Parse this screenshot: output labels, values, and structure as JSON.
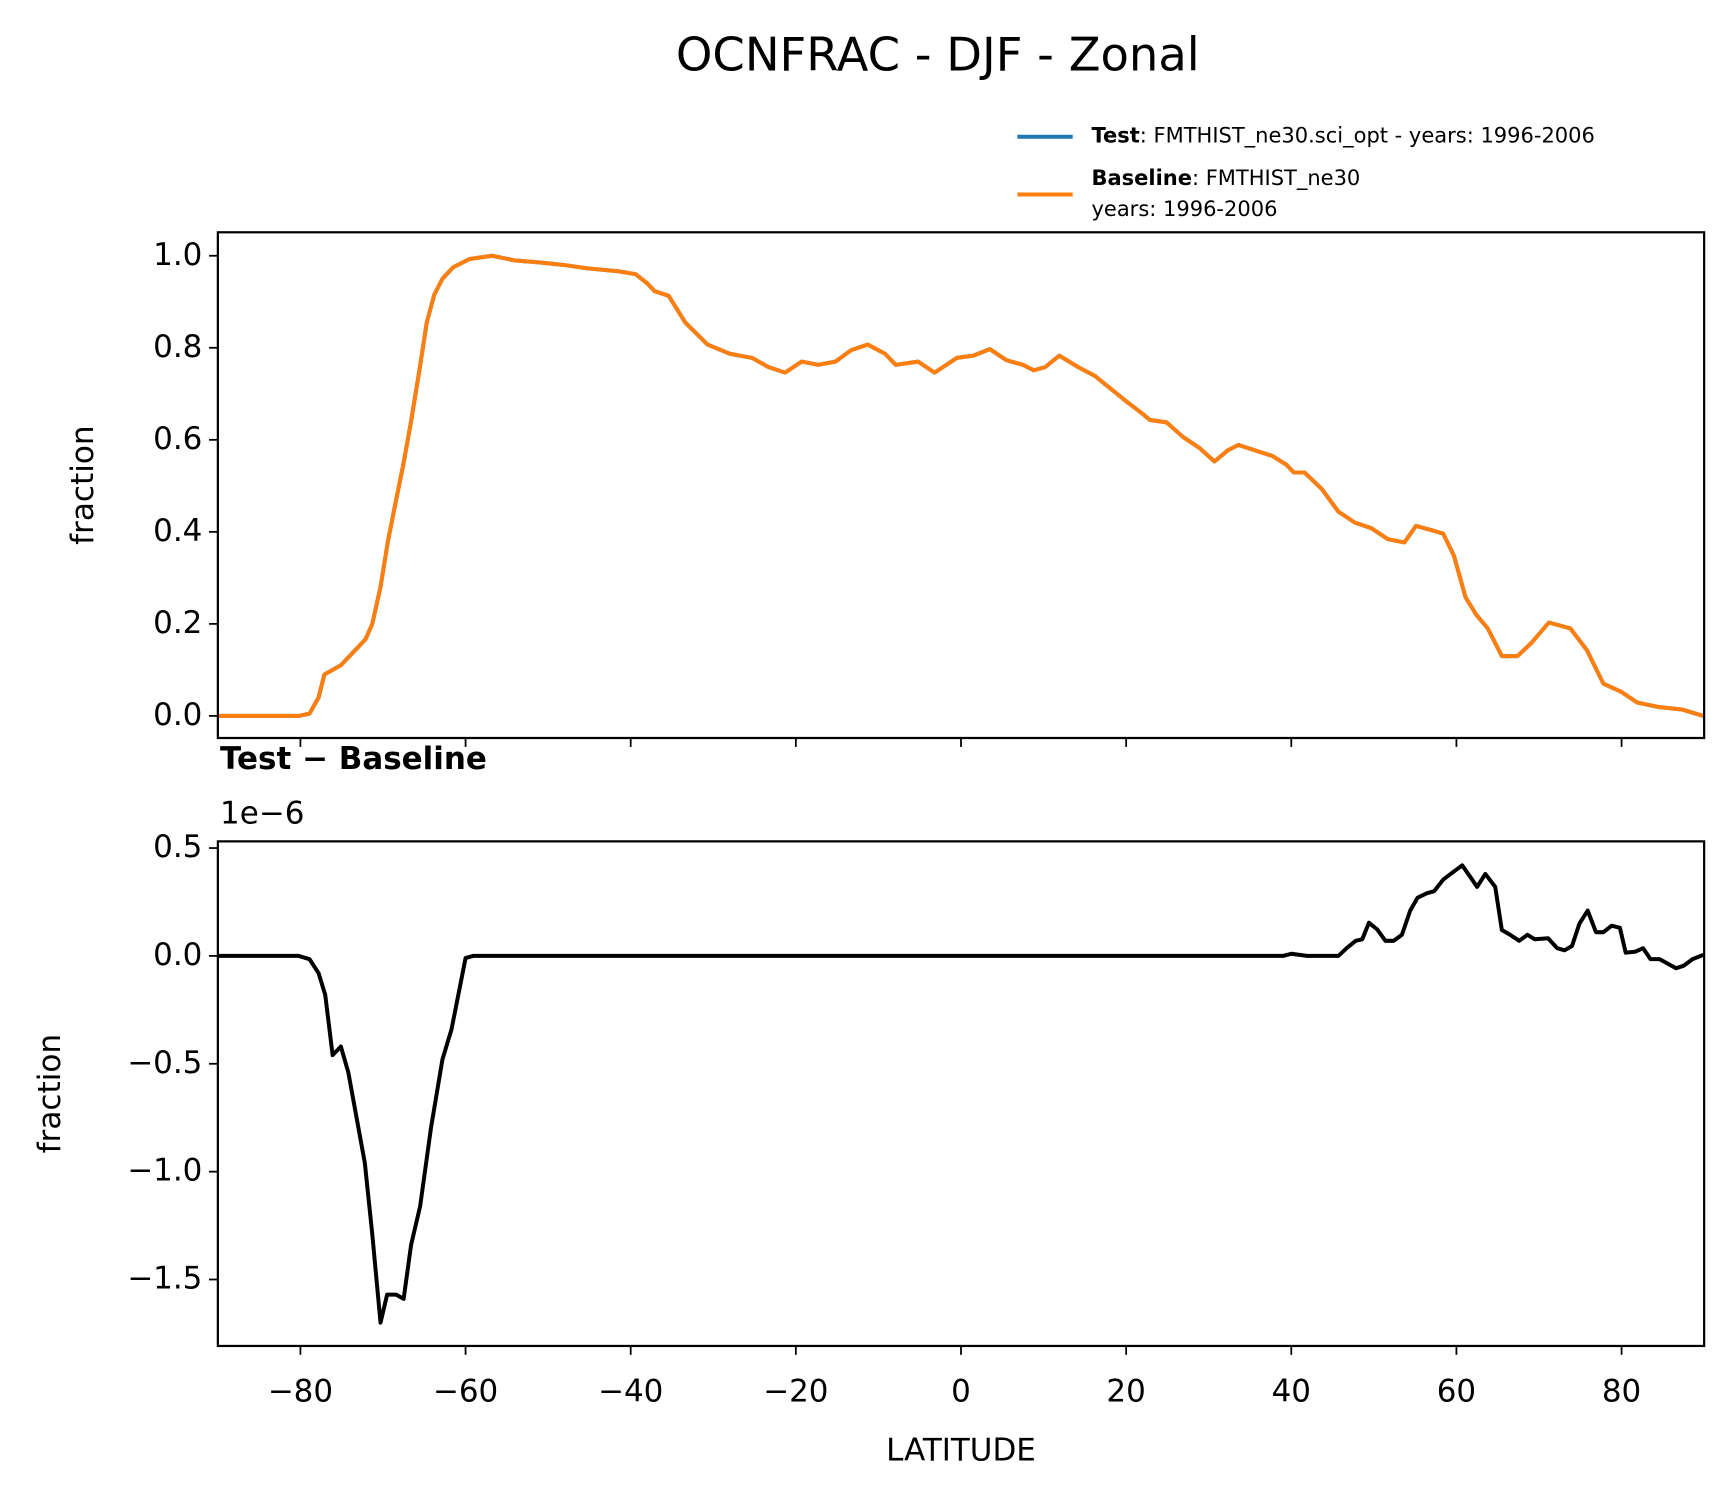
{
  "title": "OCNFRAC - DJF - Zonal",
  "chart_data": [
    {
      "type": "line",
      "ylabel": "fraction",
      "xlim": [
        -90,
        90
      ],
      "ylim": [
        -0.048,
        1.051
      ],
      "xticks": [
        -80,
        -60,
        -40,
        -20,
        0,
        20,
        40,
        60,
        80
      ],
      "yticks": [
        {
          "value": 0,
          "label": "0.0"
        },
        0.2,
        0.4,
        0.6,
        0.8,
        {
          "value": 1,
          "label": "1.0"
        }
      ],
      "x": [
        -90,
        -80.2,
        -78.9,
        -77.8,
        -77.1,
        -75.1,
        -72.1,
        -71.3,
        -70.3,
        -69.4,
        -68.4,
        -67.5,
        -66.6,
        -65.6,
        -64.7,
        -63.8,
        -62.8,
        -61.5,
        -59.5,
        -56.8,
        -54.1,
        -50.8,
        -48.1,
        -45.4,
        -41.4,
        -39.4,
        -38.0,
        -37.1,
        -35.4,
        -33.4,
        -30.7,
        -28.0,
        -25.3,
        -23.3,
        -21.3,
        -19.3,
        -17.3,
        -15.2,
        -13.3,
        -11.3,
        -9.2,
        -7.9,
        -5.2,
        -3.2,
        -0.5,
        1.5,
        3.5,
        5.5,
        7.5,
        8.8,
        10.2,
        11.9,
        14.2,
        16.2,
        18.2,
        20.2,
        21.6,
        22.9,
        24.9,
        26.9,
        28.9,
        30.7,
        32.3,
        33.6,
        35.6,
        37.7,
        39.4,
        40.3,
        41.6,
        43.7,
        45.7,
        47.7,
        49.7,
        51.7,
        53.7,
        55.1,
        57.1,
        58.4,
        59.7,
        61.1,
        62.4,
        63.8,
        65.5,
        67.4,
        69.1,
        71.2,
        73.8,
        75.8,
        77.8,
        79.9,
        81.9,
        84.6,
        87.3,
        89.9
      ],
      "series": [
        {
          "name": "Test",
          "description": ": FMTHIST_ne30.sci_opt - years: 1996-2006",
          "color": "#1f77b4",
          "values": [
            0,
            0,
            0.005,
            0.04,
            0.09,
            0.11,
            0.167,
            0.2,
            0.28,
            0.38,
            0.47,
            0.55,
            0.64,
            0.75,
            0.855,
            0.915,
            0.95,
            0.975,
            0.993,
            1.0,
            0.99,
            0.985,
            0.98,
            0.973,
            0.966,
            0.96,
            0.94,
            0.923,
            0.913,
            0.855,
            0.807,
            0.787,
            0.778,
            0.758,
            0.746,
            0.77,
            0.763,
            0.77,
            0.795,
            0.807,
            0.787,
            0.763,
            0.77,
            0.746,
            0.778,
            0.783,
            0.797,
            0.773,
            0.763,
            0.751,
            0.758,
            0.783,
            0.758,
            0.739,
            0.71,
            0.681,
            0.662,
            0.643,
            0.638,
            0.606,
            0.582,
            0.553,
            0.577,
            0.589,
            0.577,
            0.565,
            0.546,
            0.529,
            0.529,
            0.493,
            0.444,
            0.42,
            0.408,
            0.384,
            0.377,
            0.413,
            0.403,
            0.396,
            0.348,
            0.258,
            0.22,
            0.19,
            0.13,
            0.13,
            0.159,
            0.203,
            0.19,
            0.143,
            0.07,
            0.053,
            0.029,
            0.019,
            0.014,
            0.0
          ]
        },
        {
          "name": "Baseline",
          "description": ": FMTHIST_ne30",
          "description2": "years: 1996-2006",
          "color": "#ff7f0e",
          "values": [
            0,
            0,
            0.005,
            0.04,
            0.09,
            0.11,
            0.167,
            0.2,
            0.28,
            0.38,
            0.47,
            0.55,
            0.64,
            0.75,
            0.855,
            0.915,
            0.95,
            0.975,
            0.993,
            1.0,
            0.99,
            0.985,
            0.98,
            0.973,
            0.966,
            0.96,
            0.94,
            0.923,
            0.913,
            0.855,
            0.807,
            0.787,
            0.778,
            0.758,
            0.746,
            0.77,
            0.763,
            0.77,
            0.795,
            0.807,
            0.787,
            0.763,
            0.77,
            0.746,
            0.778,
            0.783,
            0.797,
            0.773,
            0.763,
            0.751,
            0.758,
            0.783,
            0.758,
            0.739,
            0.71,
            0.681,
            0.662,
            0.643,
            0.638,
            0.606,
            0.582,
            0.553,
            0.577,
            0.589,
            0.577,
            0.565,
            0.546,
            0.529,
            0.529,
            0.493,
            0.444,
            0.42,
            0.408,
            0.384,
            0.377,
            0.413,
            0.403,
            0.396,
            0.348,
            0.258,
            0.22,
            0.19,
            0.13,
            0.13,
            0.159,
            0.203,
            0.19,
            0.143,
            0.07,
            0.053,
            0.029,
            0.019,
            0.014,
            0.0
          ]
        }
      ]
    },
    {
      "type": "line",
      "title": "Test − Baseline",
      "offset_text": "1e−6",
      "ylabel": "fraction",
      "xlabel": "LATITUDE",
      "xlim": [
        -90,
        90
      ],
      "ylim": [
        -1.808,
        0.531
      ],
      "xticks": [
        {
          "value": -80,
          "label": "−80"
        },
        {
          "value": -60,
          "label": "−60"
        },
        {
          "value": -40,
          "label": "−40"
        },
        {
          "value": -20,
          "label": "−20"
        },
        0,
        20,
        40,
        60,
        80
      ],
      "yticks": [
        {
          "value": -1.5,
          "label": "−1.5"
        },
        {
          "value": -1,
          "label": "−1.0"
        },
        {
          "value": -0.5,
          "label": "−0.5"
        },
        {
          "value": 0,
          "label": "0.0"
        },
        0.5
      ],
      "x": [
        -90,
        -80.2,
        -78.9,
        -77.8,
        -77.0,
        -76.1,
        -75.1,
        -74.2,
        -72.2,
        -71.3,
        -70.3,
        -69.5,
        -68.4,
        -67.5,
        -66.6,
        -65.5,
        -64.2,
        -62.8,
        -61.7,
        -60.0,
        -59.1,
        39.0,
        40.0,
        41.9,
        45.7,
        46.7,
        47.8,
        48.6,
        49.4,
        50.4,
        51.4,
        52.4,
        53.4,
        54.4,
        55.3,
        56.4,
        57.3,
        58.4,
        59.3,
        60.7,
        61.7,
        62.5,
        63.5,
        64.7,
        65.5,
        66.5,
        67.6,
        68.6,
        69.5,
        71.1,
        72.2,
        73.1,
        74.0,
        74.9,
        75.9,
        76.9,
        77.8,
        78.8,
        79.8,
        80.5,
        81.7,
        82.6,
        83.5,
        84.6,
        86.6,
        87.5,
        88.6,
        89.9
      ],
      "series": [
        {
          "color": "#000000",
          "values": [
            0,
            0,
            -0.015,
            -0.08,
            -0.18,
            -0.46,
            -0.42,
            -0.54,
            -0.96,
            -1.29,
            -1.7,
            -1.57,
            -1.57,
            -1.59,
            -1.34,
            -1.16,
            -0.8,
            -0.48,
            -0.34,
            -0.01,
            0,
            0,
            0.01,
            0,
            0,
            0.036,
            0.07,
            0.077,
            0.154,
            0.123,
            0.07,
            0.07,
            0.098,
            0.21,
            0.27,
            0.29,
            0.3,
            0.354,
            0.38,
            0.42,
            0.365,
            0.32,
            0.38,
            0.32,
            0.12,
            0.098,
            0.07,
            0.098,
            0.077,
            0.082,
            0.036,
            0.026,
            0.046,
            0.15,
            0.21,
            0.11,
            0.11,
            0.14,
            0.13,
            0.015,
            0.02,
            0.036,
            -0.015,
            -0.015,
            -0.057,
            -0.046,
            -0.015,
            0.005
          ]
        }
      ]
    }
  ]
}
